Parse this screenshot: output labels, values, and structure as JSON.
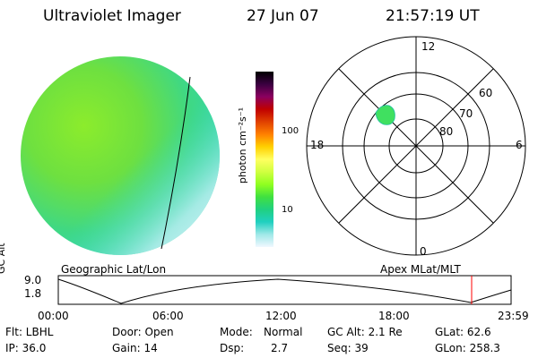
{
  "header": {
    "instrument": "Ultraviolet Imager",
    "date": "27 Jun 07",
    "time": "21:57:19 UT"
  },
  "colorbar": {
    "unit_label": "photon cm⁻²s⁻¹",
    "ticks": [
      "100",
      "10"
    ],
    "colors": [
      "#000000",
      "#3a0040",
      "#8a0060",
      "#c00000",
      "#e04000",
      "#ff8000",
      "#ffd000",
      "#ffff60",
      "#d0ff40",
      "#90ff20",
      "#40e040",
      "#20d080",
      "#20d0c0",
      "#a0e8e8",
      "#f0f8ff"
    ]
  },
  "polar": {
    "labels": {
      "top": "12",
      "bottom": "0",
      "left": "18",
      "right": "6",
      "r60": "60",
      "r70": "70",
      "r80": "80"
    }
  },
  "panel_labels": {
    "left": "Geographic Lat/Lon",
    "right": "Apex MLat/MLT"
  },
  "altitude_plot": {
    "axis_label": "GC Alt",
    "y_top": "9.0",
    "y_bottom": "1.8",
    "x_ticks": [
      "00:00",
      "06:00",
      "12:00",
      "18:00",
      "23:59"
    ],
    "marker_color": "#ff0000"
  },
  "info": {
    "filter": "Flt: LBHL",
    "door": "Door: Open",
    "mode_label": "Mode:",
    "mode_value": "Normal",
    "gc_alt": "GC Alt: 2.1 Re",
    "glat": "GLat:  62.6",
    "ip": "IP: 36.0",
    "gain": "Gain: 14",
    "dsp_label": "Dsp:",
    "dsp_value": "2.7",
    "seq": "Seq: 39",
    "glon": "GLon: 258.3"
  }
}
